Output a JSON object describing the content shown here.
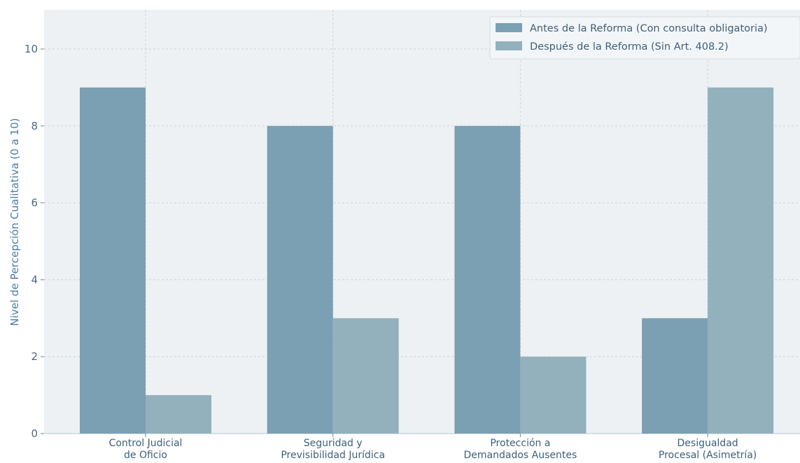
{
  "chart_data": {
    "type": "bar",
    "categories": [
      [
        "Control Judicial",
        "de Oficio"
      ],
      [
        "Seguridad y",
        "Previsibilidad Jurídica"
      ],
      [
        "Protección a",
        "Demandados Ausentes"
      ],
      [
        "Desigualdad",
        "Procesal (Asimetría)"
      ]
    ],
    "series": [
      {
        "name": "Antes de la Reforma (Con consulta obligatoria)",
        "values": [
          9,
          8,
          8,
          3
        ],
        "color": "#7b9fb3"
      },
      {
        "name": "Después de la Reforma (Sin Art. 408.2)",
        "values": [
          1,
          3,
          2,
          9
        ],
        "color": "#93b0bd"
      }
    ],
    "ylabel": "Nivel de Percepción Cualitativa (0 a 10)",
    "xlabel": "",
    "ylim": [
      0,
      11
    ],
    "yticks": [
      0,
      2,
      4,
      6,
      8,
      10
    ],
    "grid": true,
    "legend_position": "top-right",
    "colors": {
      "plot_bg": "#edf1f4",
      "grid": "#c9d3da",
      "axis_text": "#4a6b82"
    }
  }
}
